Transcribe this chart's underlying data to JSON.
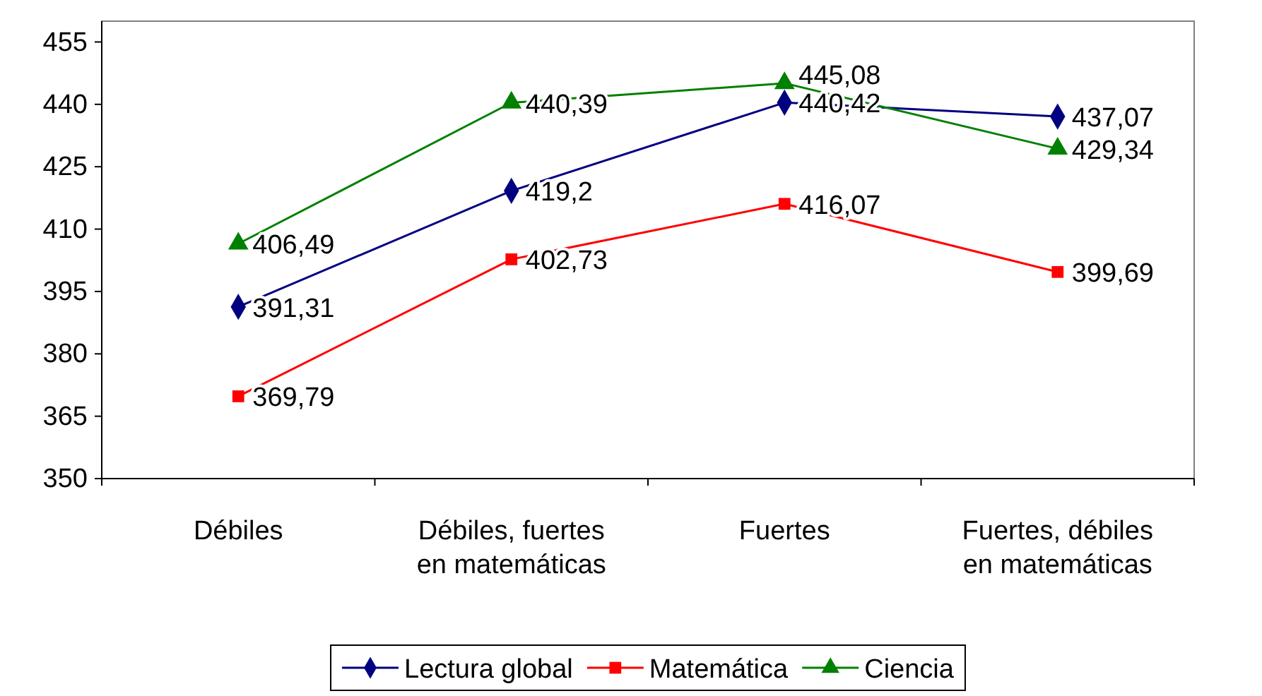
{
  "chart_data": {
    "type": "line",
    "categories": [
      "Débiles",
      "Débiles, fuertes en matemáticas",
      "Fuertes",
      "Fuertes, débiles en matemáticas"
    ],
    "series": [
      {
        "name": "Lectura global",
        "color": "#000080",
        "marker": "diamond",
        "values": [
          391.31,
          419.2,
          440.42,
          437.07
        ],
        "value_labels": [
          "391,31",
          "419,2",
          "440,42",
          "437,07"
        ]
      },
      {
        "name": "Matemática",
        "color": "#ff0000",
        "marker": "square",
        "values": [
          369.79,
          402.73,
          416.07,
          399.69
        ],
        "value_labels": [
          "369,79",
          "402,73",
          "416,07",
          "399,69"
        ]
      },
      {
        "name": "Ciencia",
        "color": "#008000",
        "marker": "triangle",
        "values": [
          406.49,
          440.39,
          445.08,
          429.34
        ],
        "value_labels": [
          "406,49",
          "440,39",
          "445,08",
          "429,34"
        ]
      }
    ],
    "ylim": [
      350,
      460
    ],
    "yticks": [
      350,
      365,
      380,
      395,
      410,
      425,
      440,
      455
    ],
    "grid": false,
    "legend": "bottom"
  }
}
